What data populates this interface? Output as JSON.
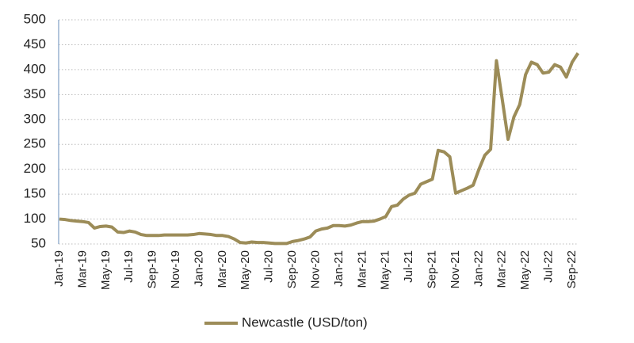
{
  "chart_data": {
    "type": "line",
    "categories": [
      "Jan-19",
      null,
      null,
      null,
      "Mar-19",
      null,
      null,
      null,
      "May-19",
      null,
      null,
      null,
      "Jul-19",
      null,
      null,
      null,
      "Sep-19",
      null,
      null,
      null,
      "Nov-19",
      null,
      null,
      null,
      "Jan-20",
      null,
      null,
      null,
      "Mar-20",
      null,
      null,
      null,
      "May-20",
      null,
      null,
      null,
      "Jul-20",
      null,
      null,
      null,
      "Sep-20",
      null,
      null,
      null,
      "Nov-20",
      null,
      null,
      null,
      "Jan-21",
      null,
      null,
      null,
      "Mar-21",
      null,
      null,
      null,
      "May-21",
      null,
      null,
      null,
      "Jul-21",
      null,
      null,
      null,
      "Sep-21",
      null,
      null,
      null,
      "Nov-21",
      null,
      null,
      null,
      "Jan-22",
      null,
      null,
      null,
      "Mar-22",
      null,
      null,
      null,
      "May-22",
      null,
      null,
      null,
      "Jul-22",
      null,
      null,
      null,
      "Sep-22",
      null
    ],
    "series": [
      {
        "name": "Newcastle (USD/ton)",
        "color": "#9c8c58",
        "values": [
          100,
          99,
          97,
          96,
          95,
          93,
          82,
          85,
          86,
          84,
          74,
          73,
          76,
          74,
          69,
          67,
          67,
          67,
          68,
          68,
          68,
          68,
          68,
          69,
          71,
          70,
          69,
          67,
          67,
          65,
          60,
          53,
          52,
          54,
          53,
          53,
          52,
          51,
          51,
          51,
          55,
          57,
          60,
          64,
          76,
          80,
          82,
          87,
          87,
          86,
          88,
          92,
          95,
          95,
          96,
          100,
          105,
          125,
          128,
          140,
          148,
          152,
          170,
          175,
          180,
          238,
          235,
          225,
          152,
          157,
          162,
          168,
          200,
          228,
          240,
          418,
          340,
          260,
          305,
          330,
          390,
          415,
          410,
          393,
          395,
          410,
          405,
          385,
          415,
          433
        ]
      }
    ],
    "ylim": [
      50,
      500
    ],
    "yticks": [
      50,
      100,
      150,
      200,
      250,
      300,
      350,
      400,
      450,
      500
    ],
    "grid": true,
    "legend": "bottom"
  }
}
